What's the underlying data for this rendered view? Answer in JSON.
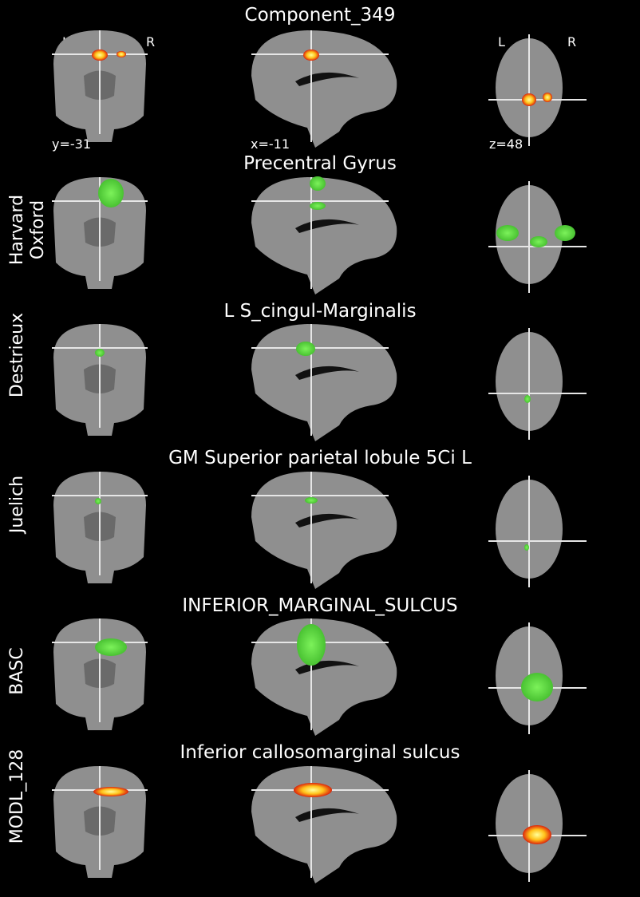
{
  "component_title": "Component_349",
  "orientation_labels": {
    "left": "L",
    "right": "R"
  },
  "coordinates": {
    "coronal": "y=-31",
    "sagittal": "x=-11",
    "axial": "z=48"
  },
  "rows": [
    {
      "atlas": "",
      "region": "Component_349",
      "overlay": "hot"
    },
    {
      "atlas": "Harvard\nOxford",
      "atlas_line1": "Harvard",
      "atlas_line2": "Oxford",
      "region": "Precentral Gyrus",
      "overlay": "green"
    },
    {
      "atlas": "Destrieux",
      "region": "L S_cingul-Marginalis",
      "overlay": "green"
    },
    {
      "atlas": "Juelich",
      "region": "GM Superior parietal lobule 5Ci L",
      "overlay": "green"
    },
    {
      "atlas": "BASC",
      "region": "INFERIOR_MARGINAL_SULCUS",
      "overlay": "green"
    },
    {
      "atlas": "MODL_128",
      "region": "Inferior callosomarginal sulcus",
      "overlay": "hot"
    }
  ],
  "colors": {
    "background": "#000000",
    "brain": "#8f8f8f",
    "overlay_green": "#5cd23a",
    "overlay_hot": "#ffd23a",
    "crosshair": "#e6e6e6"
  }
}
